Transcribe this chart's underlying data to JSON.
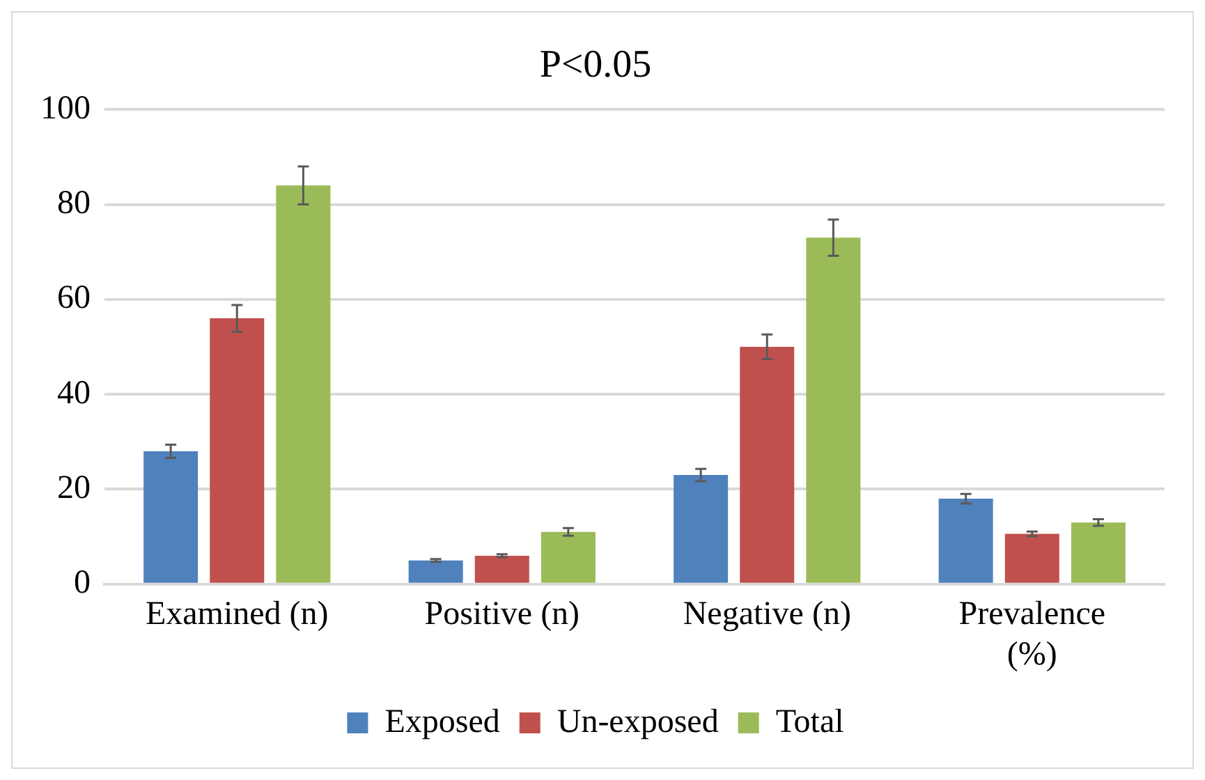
{
  "chart_data": {
    "type": "bar",
    "title": "P<0.05",
    "categories": [
      "Examined (n)",
      "Positive (n)",
      "Negative (n)",
      "Prevalence (%)"
    ],
    "series": [
      {
        "name": "Exposed",
        "color": "#4f81bd",
        "values": [
          28,
          5,
          23,
          18
        ],
        "errors": [
          1.4,
          0.3,
          1.3,
          1
        ]
      },
      {
        "name": "Un-exposed",
        "color": "#c0504d",
        "values": [
          56,
          6,
          50,
          10.6
        ],
        "errors": [
          2.8,
          0.3,
          2.6,
          0.5
        ]
      },
      {
        "name": "Total",
        "color": "#9bbb59",
        "values": [
          84,
          11,
          73,
          13
        ],
        "errors": [
          4,
          0.8,
          3.8,
          0.7
        ]
      }
    ],
    "ylim": [
      0,
      100
    ],
    "yticks": [
      0,
      20,
      40,
      60,
      80,
      100
    ],
    "grid": "y",
    "legend": "bottom"
  }
}
